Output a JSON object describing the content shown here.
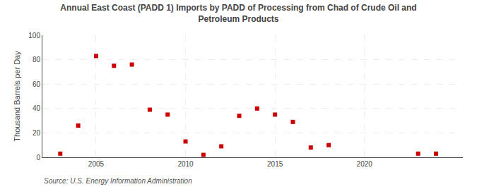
{
  "chart_data": {
    "type": "scatter",
    "title": "Annual East Coast (PADD 1) Imports by PADD of Processing from Chad of Crude Oil and\nPetroleum Products",
    "ylabel": "Thousand Barrels per Day",
    "annotations": [
      "Source: U.S. Energy Information Administration"
    ],
    "x": [
      2003,
      2004,
      2005,
      2006,
      2007,
      2008,
      2009,
      2010,
      2011,
      2012,
      2013,
      2014,
      2015,
      2016,
      2017,
      2018,
      2023,
      2024
    ],
    "values": [
      3,
      26,
      83,
      75,
      76,
      39,
      35,
      13,
      2,
      9,
      34,
      40,
      35,
      29,
      8,
      10,
      3,
      3
    ],
    "color": "#cc0000",
    "marker": "square",
    "xlim": [
      2002,
      2025.5
    ],
    "xticks": [
      2005,
      2010,
      2015,
      2020
    ],
    "ylim": [
      0,
      100
    ],
    "yticks": [
      0,
      20,
      40,
      60,
      80,
      100
    ],
    "grid": true
  }
}
